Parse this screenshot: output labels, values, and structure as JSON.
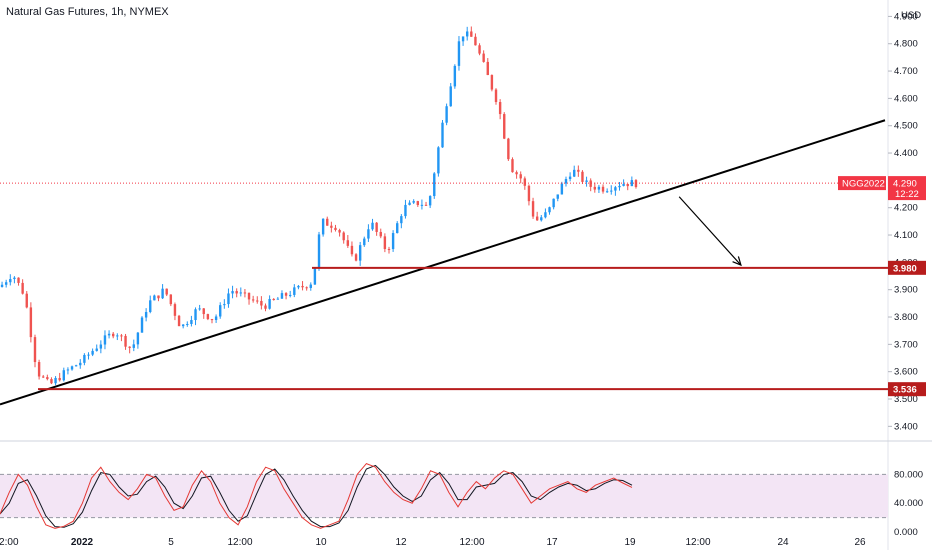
{
  "title": "Natural Gas Futures, 1h, NYMEX",
  "currency_label": "USD",
  "colors": {
    "up": "#2196f3",
    "down": "#ef5350",
    "level": "#b71c1c",
    "trendline": "#000000",
    "price_line": "#f23645",
    "stoch_k": "#e53935",
    "stoch_d": "#131722",
    "stoch_band": "#f3e5f5"
  },
  "chart_data": [
    {
      "type": "candlestick",
      "title": "Natural Gas Futures, 1h, NYMEX",
      "ylabel": "USD",
      "ylim": [
        3.35,
        4.96
      ],
      "y_ticks": [
        "4.900",
        "4.800",
        "4.700",
        "4.600",
        "4.500",
        "4.400",
        "4.300",
        "4.200",
        "4.100",
        "4.000",
        "3.900",
        "3.800",
        "3.700",
        "3.600",
        "3.500",
        "3.400"
      ],
      "x_tick_labels": [
        "12:00",
        "2022",
        "5",
        "12:00",
        "10",
        "12",
        "12:00",
        "17",
        "19",
        "12:00",
        "24",
        "26"
      ],
      "price_path": [
        {
          "t": 0,
          "price": 3.91
        },
        {
          "t": 3,
          "price": 3.96
        },
        {
          "t": 6,
          "price": 3.88
        },
        {
          "t": 9,
          "price": 3.6
        },
        {
          "t": 12,
          "price": 3.55
        },
        {
          "t": 16,
          "price": 3.6
        },
        {
          "t": 20,
          "price": 3.64
        },
        {
          "t": 24,
          "price": 3.7
        },
        {
          "t": 28,
          "price": 3.75
        },
        {
          "t": 32,
          "price": 3.68
        },
        {
          "t": 36,
          "price": 3.85
        },
        {
          "t": 40,
          "price": 3.9
        },
        {
          "t": 44,
          "price": 3.76
        },
        {
          "t": 48,
          "price": 3.83
        },
        {
          "t": 52,
          "price": 3.79
        },
        {
          "t": 56,
          "price": 3.9
        },
        {
          "t": 60,
          "price": 3.87
        },
        {
          "t": 64,
          "price": 3.84
        },
        {
          "t": 68,
          "price": 3.87
        },
        {
          "t": 72,
          "price": 3.9
        },
        {
          "t": 76,
          "price": 3.93
        },
        {
          "t": 78,
          "price": 4.15
        },
        {
          "t": 82,
          "price": 4.13
        },
        {
          "t": 86,
          "price": 4.0
        },
        {
          "t": 90,
          "price": 4.15
        },
        {
          "t": 94,
          "price": 4.04
        },
        {
          "t": 98,
          "price": 4.2
        },
        {
          "t": 102,
          "price": 4.22
        },
        {
          "t": 104,
          "price": 4.2
        },
        {
          "t": 108,
          "price": 4.55
        },
        {
          "t": 112,
          "price": 4.84
        },
        {
          "t": 115,
          "price": 4.82
        },
        {
          "t": 118,
          "price": 4.7
        },
        {
          "t": 121,
          "price": 4.58
        },
        {
          "t": 124,
          "price": 4.35
        },
        {
          "t": 127,
          "price": 4.3
        },
        {
          "t": 130,
          "price": 4.15
        },
        {
          "t": 133,
          "price": 4.18
        },
        {
          "t": 136,
          "price": 4.27
        },
        {
          "t": 139,
          "price": 4.34
        },
        {
          "t": 143,
          "price": 4.28
        },
        {
          "t": 147,
          "price": 4.27
        },
        {
          "t": 151,
          "price": 4.29
        },
        {
          "t": 155,
          "price": 4.29
        }
      ],
      "levels": [
        {
          "name": "NGG2022",
          "value": 4.29,
          "label": "4.290",
          "countdown": "12:22"
        },
        {
          "value": 3.98,
          "label": "3.980"
        },
        {
          "value": 3.536,
          "label": "3.536"
        }
      ],
      "trendline": {
        "from": {
          "t": 0,
          "price": 3.48
        },
        "to": {
          "t": 215,
          "price": 4.52
        }
      },
      "projection_arrow": {
        "from": {
          "t": 165,
          "price": 4.24
        },
        "to": {
          "t": 180,
          "price": 3.99
        }
      }
    },
    {
      "type": "line",
      "ylim": [
        0,
        100
      ],
      "y_ticks": [
        "80.000",
        "40.000",
        "0.000"
      ],
      "band": [
        20,
        80
      ],
      "series": [
        {
          "values": [
            25,
            55,
            80,
            65,
            35,
            10,
            5,
            8,
            15,
            40,
            75,
            90,
            70,
            55,
            45,
            60,
            80,
            75,
            50,
            30,
            35,
            65,
            85,
            70,
            40,
            20,
            10,
            35,
            70,
            90,
            85,
            60,
            40,
            20,
            10,
            5,
            10,
            15,
            45,
            80,
            95,
            90,
            70,
            55,
            45,
            40,
            60,
            85,
            80,
            55,
            35,
            55,
            70,
            60,
            75,
            85,
            80,
            60,
            40,
            50,
            60,
            65,
            70,
            60,
            55,
            65,
            70,
            75,
            68,
            62
          ]
        }
      ]
    }
  ]
}
